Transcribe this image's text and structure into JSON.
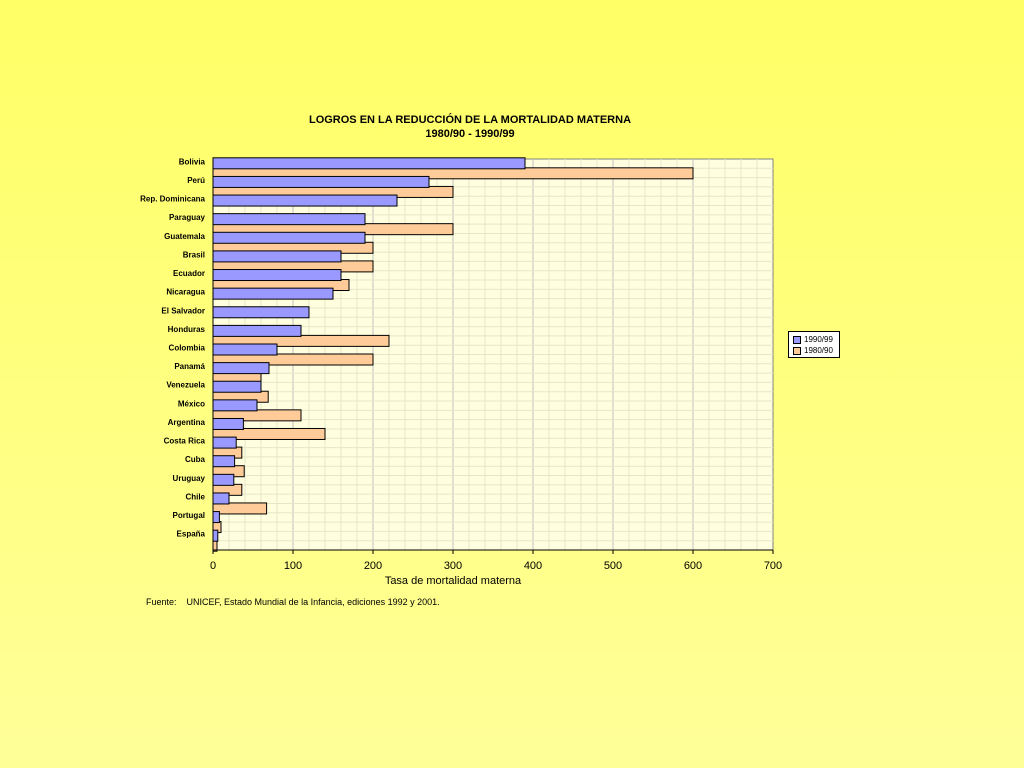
{
  "chart_data": {
    "type": "bar",
    "orientation": "horizontal",
    "title": "LOGROS EN LA REDUCCIÓN DE LA MORTALIDAD MATERNA",
    "subtitle": "1980/90 - 1990/99",
    "xlabel": "Tasa de mortalidad materna",
    "ylabel": "",
    "xlim": [
      0,
      700
    ],
    "xticks": [
      0,
      100,
      200,
      300,
      400,
      500,
      600,
      700
    ],
    "grid": true,
    "legend_position": "right",
    "categories": [
      "Bolivia",
      "Perú",
      "Rep. Dominicana",
      "Paraguay",
      "Guatemala",
      "Brasil",
      "Ecuador",
      "Nicaragua",
      "El Salvador",
      "Honduras",
      "Colombia",
      "Panamá",
      "Venezuela",
      "México",
      "Argentina",
      "Costa Rica",
      "Cuba",
      "Uruguay",
      "Chile",
      "Portugal",
      "España"
    ],
    "series": [
      {
        "name": "1990/99",
        "color": "#9999ff",
        "values": [
          390,
          270,
          230,
          190,
          190,
          160,
          160,
          150,
          120,
          110,
          80,
          70,
          60,
          55,
          38,
          29,
          27,
          26,
          20,
          8,
          6
        ]
      },
      {
        "name": "1980/90",
        "color": "#ffcc99",
        "values": [
          600,
          300,
          0,
          300,
          200,
          200,
          170,
          0,
          0,
          220,
          200,
          60,
          69,
          110,
          140,
          36,
          39,
          36,
          67,
          10,
          5
        ]
      }
    ]
  },
  "source_text": "Fuente:    UNICEF, Estado Mundial de la Infancia, ediciones 1992 y 2001."
}
